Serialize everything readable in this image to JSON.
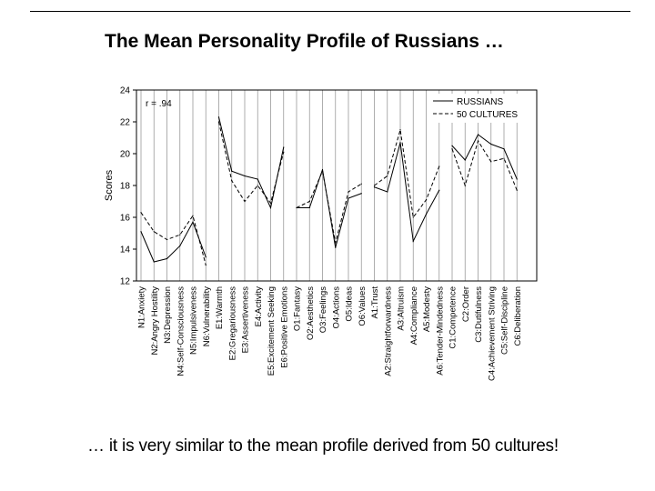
{
  "slide": {
    "title": "The Mean Personality Profile of Russians …",
    "caption": "… it is very similar to the mean profile derived from 50 cultures!"
  },
  "chart_data": {
    "type": "line",
    "ylabel": "Scores",
    "ylim": [
      12,
      24
    ],
    "yticks": [
      12,
      14,
      16,
      18,
      20,
      22,
      24
    ],
    "annotation": "r = .94",
    "grid": "vertical",
    "legend_position": "top-right",
    "categories": [
      "N1:Anxiety",
      "N2:Angry Hostility",
      "N3:Depression",
      "N4:Self-Consciousness",
      "N5:Impulsiveness",
      "N6:Vulnerability",
      "E1:Warmth",
      "E2:Gregariousness",
      "E3:Assertiveness",
      "E4:Activity",
      "E5:Excitement Seeking",
      "E6:Positive Emotions",
      "O1:Fantasy",
      "O2:Aesthetics",
      "O3:Feelings",
      "O4:Actions",
      "O5:Ideas",
      "O6:Values",
      "A1:Trust",
      "A2:Straightforwardness",
      "A3:Altruism",
      "A4:Compliance",
      "A5:Modesty",
      "A6:Tender-Mindedness",
      "C1:Competence",
      "C2:Order",
      "C3:Dutifulness",
      "C4:Achievement Striving",
      "C5:Self-Discipline",
      "C6:Deliberation"
    ],
    "groups": [
      [
        0,
        5
      ],
      [
        6,
        11
      ],
      [
        12,
        17
      ],
      [
        18,
        23
      ],
      [
        24,
        29
      ]
    ],
    "series": [
      {
        "name": "RUSSIANS",
        "style": "solid",
        "values": [
          15.1,
          13.2,
          13.4,
          14.2,
          15.7,
          13.5,
          22.3,
          18.9,
          18.6,
          18.4,
          16.6,
          20.4,
          16.6,
          16.6,
          19.0,
          14.1,
          17.2,
          17.5,
          17.9,
          17.6,
          20.7,
          14.5,
          16.2,
          17.7,
          20.5,
          19.6,
          21.2,
          20.6,
          20.3,
          18.4
        ]
      },
      {
        "name": "50 CULTURES",
        "style": "dashed",
        "values": [
          16.3,
          15.1,
          14.6,
          14.9,
          16.1,
          13.0,
          22.0,
          18.3,
          17.0,
          18.0,
          16.9,
          20.1,
          16.6,
          17.0,
          18.9,
          14.4,
          17.6,
          18.1,
          18.0,
          18.6,
          21.5,
          16.0,
          17.1,
          19.2,
          20.3,
          18.0,
          20.8,
          19.5,
          19.7,
          17.7
        ]
      }
    ]
  }
}
